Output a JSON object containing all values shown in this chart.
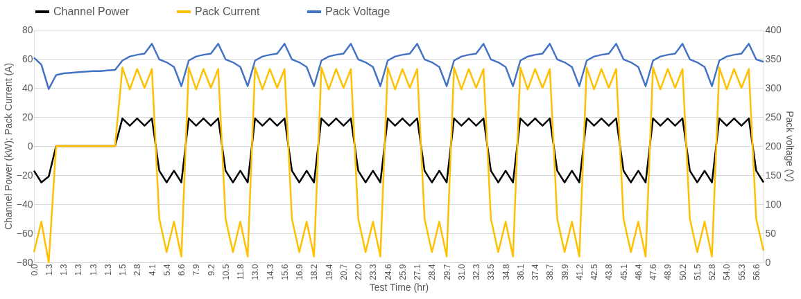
{
  "chart_data": {
    "type": "line",
    "xlabel": "Test Time (hr)",
    "ylabel": "Channel Power (kW); Pack Current (A)",
    "y2label": "Pack voltage (V)",
    "categories": [
      "0.0",
      null,
      "1.3",
      null,
      "1.3",
      null,
      "1.3",
      null,
      "1.3",
      null,
      "1.3",
      null,
      "1.5",
      null,
      "2.8",
      null,
      "4.1",
      null,
      "5.4",
      null,
      "6.6",
      null,
      "7.9",
      null,
      "9.2",
      null,
      "10.5",
      null,
      "11.8",
      null,
      "13.0",
      null,
      "14.3",
      null,
      "15.6",
      null,
      "16.9",
      null,
      "18.2",
      null,
      "19.4",
      null,
      "20.7",
      null,
      "22.0",
      null,
      "23.3",
      null,
      "24.6",
      null,
      "25.9",
      null,
      "27.1",
      null,
      "28.4",
      null,
      "29.7",
      null,
      "31.0",
      null,
      "32.3",
      null,
      "33.5",
      null,
      "34.8",
      null,
      "36.1",
      null,
      "37.4",
      null,
      "38.7",
      null,
      "39.9",
      null,
      "41.2",
      null,
      "42.5",
      null,
      "43.8",
      null,
      "45.1",
      null,
      "46.4",
      null,
      "47.6",
      null,
      "48.9",
      null,
      "50.2",
      null,
      "51.5",
      null,
      "52.8",
      null,
      "54.0",
      null,
      "55.3",
      null,
      "56.6",
      null
    ],
    "series": [
      {
        "name": "Channel Power",
        "color": "#000000",
        "values": [
          -17,
          -25,
          -21,
          0,
          0,
          0,
          0,
          0,
          0,
          0,
          0,
          0,
          19,
          14,
          19,
          14,
          19,
          -17,
          -25,
          -17,
          -25,
          19,
          14,
          19,
          14,
          19,
          -17,
          -25,
          -17,
          -25,
          19,
          14,
          19,
          14,
          19,
          -17,
          -25,
          -17,
          -25,
          19,
          14,
          19,
          14,
          19,
          -17,
          -25,
          -17,
          -25,
          19,
          14,
          19,
          14,
          19,
          -17,
          -25,
          -17,
          -25,
          19,
          14,
          19,
          14,
          19,
          -17,
          -25,
          -17,
          -25,
          19,
          14,
          19,
          14,
          19,
          -17,
          -25,
          -17,
          -25,
          19,
          14,
          19,
          14,
          19,
          -17,
          -25,
          -17,
          -25,
          19,
          14,
          19,
          14,
          19,
          -17,
          -25,
          -17,
          -25,
          19,
          14,
          19,
          14,
          19,
          -17,
          -25
        ]
      },
      {
        "name": "Pack Current",
        "color": "#ffc000",
        "values": [
          -73,
          -52,
          -80,
          0,
          0,
          0,
          0,
          0,
          0,
          0,
          0,
          0,
          54,
          39,
          53,
          40,
          53,
          -50,
          -73,
          -52,
          -76,
          54,
          39,
          53,
          40,
          53,
          -50,
          -73,
          -52,
          -76,
          54,
          39,
          53,
          40,
          53,
          -50,
          -73,
          -52,
          -76,
          54,
          39,
          53,
          40,
          53,
          -50,
          -73,
          -52,
          -76,
          54,
          39,
          53,
          40,
          53,
          -50,
          -73,
          -52,
          -76,
          54,
          39,
          53,
          40,
          53,
          -50,
          -73,
          -52,
          -76,
          54,
          39,
          53,
          40,
          53,
          -50,
          -73,
          -52,
          -76,
          54,
          39,
          53,
          40,
          53,
          -50,
          -73,
          -52,
          -76,
          54,
          39,
          53,
          40,
          53,
          -50,
          -73,
          -52,
          -76,
          54,
          39,
          53,
          40,
          53,
          -50,
          -72
        ]
      },
      {
        "name": "Pack Voltage",
        "color": "#4472c4",
        "axis": "y2",
        "values": [
          352,
          340,
          298,
          322,
          325,
          326,
          327,
          328,
          329,
          329,
          330,
          331,
          347,
          354,
          357,
          359,
          376,
          349,
          344,
          336,
          303,
          347,
          354,
          357,
          359,
          376,
          349,
          344,
          336,
          303,
          347,
          354,
          357,
          359,
          376,
          349,
          344,
          336,
          303,
          347,
          354,
          357,
          359,
          376,
          349,
          344,
          336,
          303,
          347,
          354,
          357,
          359,
          376,
          349,
          344,
          336,
          303,
          347,
          354,
          357,
          359,
          376,
          349,
          344,
          336,
          303,
          347,
          354,
          357,
          359,
          376,
          349,
          344,
          336,
          303,
          347,
          354,
          357,
          359,
          376,
          349,
          344,
          336,
          303,
          347,
          354,
          357,
          359,
          376,
          349,
          344,
          336,
          303,
          347,
          354,
          357,
          359,
          376,
          349,
          345
        ]
      }
    ],
    "ylim": [
      -80,
      80
    ],
    "yticks": [
      -80,
      -60,
      -40,
      -20,
      0,
      20,
      40,
      60,
      80
    ],
    "y2lim": [
      0,
      400
    ],
    "y2ticks": [
      0,
      50,
      100,
      150,
      200,
      250,
      300,
      350,
      400
    ],
    "grid": "y",
    "legend": "top"
  }
}
